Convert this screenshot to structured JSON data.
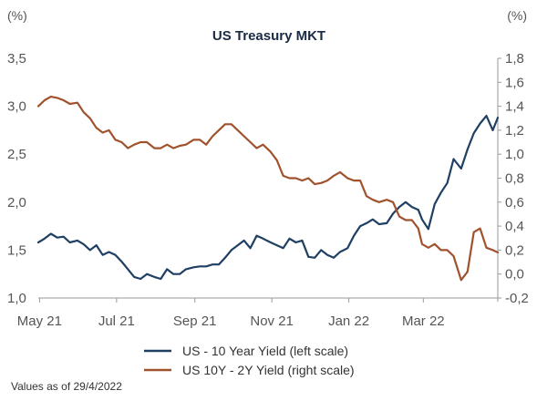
{
  "chart_data": {
    "type": "line",
    "title": "US Treasury MKT",
    "left_unit": "(%)",
    "right_unit": "(%)",
    "x_ticks": [
      "May 21",
      "Jul 21",
      "Sep 21",
      "Nov 21",
      "Jan 22",
      "Mar 22"
    ],
    "x_tick_dates": [
      "2021-05-01",
      "2021-07-01",
      "2021-09-01",
      "2021-11-01",
      "2022-01-01",
      "2022-03-01"
    ],
    "x_range": [
      "2021-04-30",
      "2022-04-29"
    ],
    "left_axis": {
      "ticks": [
        "3,5",
        "3,0",
        "2,5",
        "2,0",
        "1,5",
        "1,0"
      ],
      "range": [
        1.0,
        3.5
      ]
    },
    "right_axis": {
      "ticks": [
        "1,8",
        "1,6",
        "1,4",
        "1,2",
        "1,0",
        "0,8",
        "0,6",
        "0,4",
        "0,2",
        "0,0",
        "-0,2"
      ],
      "range": [
        -0.2,
        1.8
      ]
    },
    "series": [
      {
        "name": "US - 10 Year Yield (left scale)",
        "axis": "left",
        "color": "#1f3f63",
        "x": [
          "2021-04-30",
          "2021-05-05",
          "2021-05-10",
          "2021-05-15",
          "2021-05-20",
          "2021-05-25",
          "2021-05-31",
          "2021-06-05",
          "2021-06-10",
          "2021-06-15",
          "2021-06-20",
          "2021-06-25",
          "2021-06-30",
          "2021-07-05",
          "2021-07-10",
          "2021-07-15",
          "2021-07-20",
          "2021-07-25",
          "2021-07-31",
          "2021-08-05",
          "2021-08-10",
          "2021-08-15",
          "2021-08-20",
          "2021-08-25",
          "2021-08-31",
          "2021-09-05",
          "2021-09-10",
          "2021-09-15",
          "2021-09-20",
          "2021-09-25",
          "2021-09-30",
          "2021-10-05",
          "2021-10-10",
          "2021-10-15",
          "2021-10-20",
          "2021-10-25",
          "2021-10-31",
          "2021-11-05",
          "2021-11-10",
          "2021-11-15",
          "2021-11-20",
          "2021-11-25",
          "2021-11-30",
          "2021-12-05",
          "2021-12-10",
          "2021-12-15",
          "2021-12-20",
          "2021-12-25",
          "2021-12-31",
          "2022-01-05",
          "2022-01-10",
          "2022-01-15",
          "2022-01-20",
          "2022-01-25",
          "2022-01-31",
          "2022-02-05",
          "2022-02-10",
          "2022-02-15",
          "2022-02-20",
          "2022-02-25",
          "2022-02-28",
          "2022-03-05",
          "2022-03-10",
          "2022-03-15",
          "2022-03-20",
          "2022-03-25",
          "2022-03-31",
          "2022-04-05",
          "2022-04-10",
          "2022-04-15",
          "2022-04-20",
          "2022-04-25",
          "2022-04-29"
        ],
        "values": [
          1.58,
          1.62,
          1.67,
          1.63,
          1.64,
          1.58,
          1.6,
          1.56,
          1.5,
          1.55,
          1.45,
          1.48,
          1.45,
          1.38,
          1.3,
          1.22,
          1.2,
          1.25,
          1.22,
          1.2,
          1.3,
          1.25,
          1.25,
          1.3,
          1.32,
          1.33,
          1.33,
          1.35,
          1.35,
          1.42,
          1.5,
          1.55,
          1.6,
          1.52,
          1.65,
          1.62,
          1.58,
          1.55,
          1.52,
          1.62,
          1.58,
          1.6,
          1.43,
          1.42,
          1.5,
          1.45,
          1.42,
          1.48,
          1.52,
          1.65,
          1.75,
          1.78,
          1.82,
          1.77,
          1.78,
          1.88,
          1.95,
          2.0,
          1.95,
          1.92,
          1.82,
          1.72,
          1.98,
          2.1,
          2.2,
          2.45,
          2.35,
          2.55,
          2.72,
          2.82,
          2.9,
          2.75,
          2.88
        ]
      },
      {
        "name": "US 10Y - 2Y Yield (right scale)",
        "axis": "right",
        "color": "#a0522d",
        "x": [
          "2021-04-30",
          "2021-05-05",
          "2021-05-10",
          "2021-05-15",
          "2021-05-20",
          "2021-05-25",
          "2021-05-31",
          "2021-06-05",
          "2021-06-10",
          "2021-06-15",
          "2021-06-20",
          "2021-06-25",
          "2021-06-30",
          "2021-07-05",
          "2021-07-10",
          "2021-07-15",
          "2021-07-20",
          "2021-07-25",
          "2021-07-31",
          "2021-08-05",
          "2021-08-10",
          "2021-08-15",
          "2021-08-20",
          "2021-08-25",
          "2021-08-31",
          "2021-09-05",
          "2021-09-10",
          "2021-09-15",
          "2021-09-20",
          "2021-09-25",
          "2021-09-30",
          "2021-10-05",
          "2021-10-10",
          "2021-10-15",
          "2021-10-20",
          "2021-10-25",
          "2021-10-31",
          "2021-11-05",
          "2021-11-10",
          "2021-11-15",
          "2021-11-20",
          "2021-11-25",
          "2021-11-30",
          "2021-12-05",
          "2021-12-10",
          "2021-12-15",
          "2021-12-20",
          "2021-12-25",
          "2021-12-31",
          "2022-01-05",
          "2022-01-10",
          "2022-01-15",
          "2022-01-20",
          "2022-01-25",
          "2022-01-31",
          "2022-02-05",
          "2022-02-10",
          "2022-02-15",
          "2022-02-20",
          "2022-02-25",
          "2022-02-28",
          "2022-03-05",
          "2022-03-10",
          "2022-03-15",
          "2022-03-20",
          "2022-03-25",
          "2022-03-31",
          "2022-04-05",
          "2022-04-10",
          "2022-04-15",
          "2022-04-20",
          "2022-04-25",
          "2022-04-29"
        ],
        "values": [
          1.4,
          1.45,
          1.48,
          1.47,
          1.45,
          1.42,
          1.43,
          1.35,
          1.3,
          1.22,
          1.18,
          1.2,
          1.12,
          1.1,
          1.05,
          1.08,
          1.1,
          1.1,
          1.05,
          1.05,
          1.08,
          1.05,
          1.07,
          1.08,
          1.12,
          1.12,
          1.08,
          1.15,
          1.2,
          1.25,
          1.25,
          1.2,
          1.15,
          1.1,
          1.05,
          1.08,
          1.02,
          0.95,
          0.82,
          0.8,
          0.8,
          0.78,
          0.8,
          0.75,
          0.76,
          0.78,
          0.82,
          0.85,
          0.8,
          0.78,
          0.78,
          0.65,
          0.62,
          0.6,
          0.62,
          0.6,
          0.48,
          0.45,
          0.45,
          0.38,
          0.25,
          0.22,
          0.25,
          0.2,
          0.2,
          0.15,
          -0.05,
          0.02,
          0.35,
          0.38,
          0.22,
          0.2,
          0.18
        ]
      }
    ],
    "legend_placement": "bottom",
    "grid": false,
    "footnote": "Values as of 29/4/2022"
  }
}
